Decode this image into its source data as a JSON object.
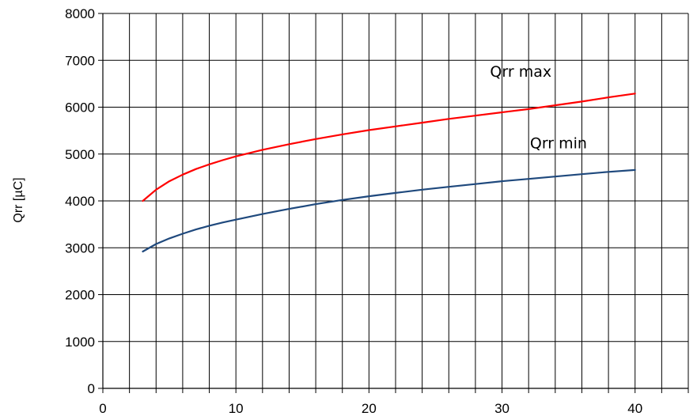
{
  "chart_data": {
    "type": "line",
    "title": "",
    "xlabel": "",
    "ylabel": "Qrr [µC]",
    "xlim": [
      0,
      44
    ],
    "ylim": [
      0,
      8000
    ],
    "x_ticks": [
      "0",
      "10",
      "20",
      "30",
      "40"
    ],
    "y_ticks": [
      "0",
      "1000",
      "2000",
      "3000",
      "4000",
      "5000",
      "6000",
      "7000",
      "8000"
    ],
    "grid": true,
    "legend": "none",
    "series": [
      {
        "name": "Qrr max",
        "color": "#ff0000",
        "x": [
          3,
          4,
          5,
          6,
          7,
          8,
          9,
          10,
          12,
          14,
          16,
          18,
          20,
          22,
          24,
          26,
          28,
          30,
          32,
          34,
          36,
          38,
          40
        ],
        "y": [
          4000,
          4240,
          4420,
          4560,
          4680,
          4780,
          4870,
          4950,
          5090,
          5210,
          5320,
          5420,
          5510,
          5590,
          5670,
          5750,
          5820,
          5890,
          5960,
          6040,
          6120,
          6210,
          6290
        ]
      },
      {
        "name": "Qrr min",
        "color": "#1f497d",
        "x": [
          3,
          4,
          5,
          6,
          7,
          8,
          9,
          10,
          12,
          14,
          16,
          18,
          20,
          22,
          24,
          26,
          28,
          30,
          32,
          34,
          36,
          38,
          40
        ],
        "y": [
          2920,
          3080,
          3200,
          3300,
          3390,
          3470,
          3540,
          3600,
          3720,
          3830,
          3930,
          4020,
          4100,
          4170,
          4240,
          4300,
          4360,
          4420,
          4470,
          4520,
          4570,
          4620,
          4660
        ]
      }
    ],
    "annotations": [
      {
        "text": "Qrr max",
        "x": 29.1,
        "y": 6650
      },
      {
        "text": "Qrr min",
        "x": 32.1,
        "y": 5120
      }
    ]
  }
}
